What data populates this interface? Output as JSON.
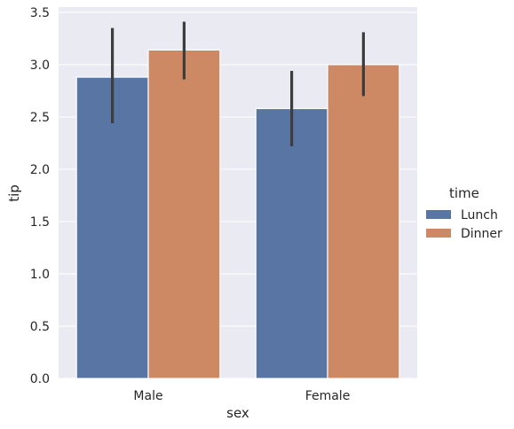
{
  "chart_data": {
    "type": "bar",
    "xlabel": "sex",
    "ylabel": "tip",
    "categories": [
      "Male",
      "Female"
    ],
    "ylim": [
      0,
      3.55
    ],
    "yticks": [
      0.0,
      0.5,
      1.0,
      1.5,
      2.0,
      2.5,
      3.0,
      3.5
    ],
    "ytick_labels": [
      "0.0",
      "0.5",
      "1.0",
      "1.5",
      "2.0",
      "2.5",
      "3.0",
      "3.5"
    ],
    "grid": true,
    "background_color": "#EAEAF2",
    "legend": {
      "title": "time",
      "placement": "right"
    },
    "series": [
      {
        "name": "Lunch",
        "color": "#5875A4",
        "values": [
          2.88,
          2.58
        ],
        "ci_low": [
          2.44,
          2.22
        ],
        "ci_high": [
          3.35,
          2.94
        ]
      },
      {
        "name": "Dinner",
        "color": "#CC8963",
        "values": [
          3.14,
          3.0
        ],
        "ci_low": [
          2.86,
          2.7
        ],
        "ci_high": [
          3.41,
          3.31
        ]
      }
    ]
  }
}
